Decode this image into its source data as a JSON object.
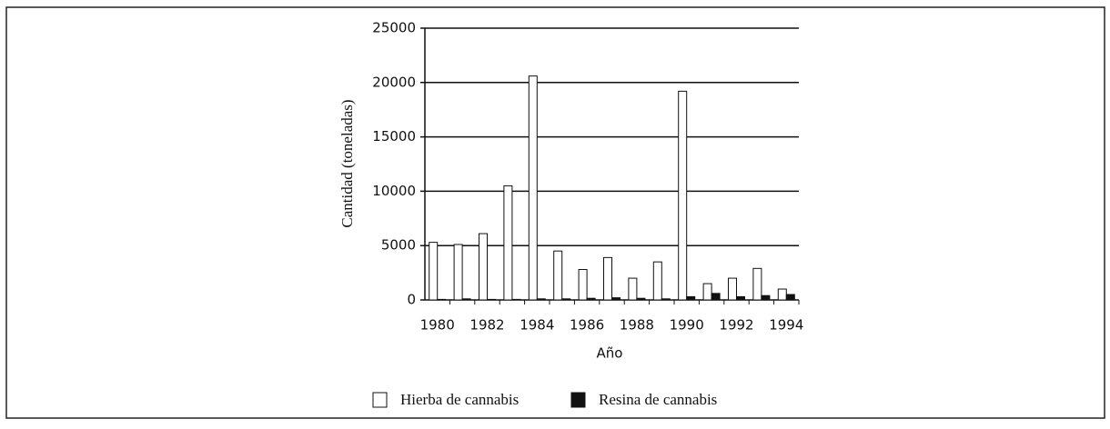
{
  "chart_data": {
    "type": "bar",
    "x_label": "Año",
    "y_label": "Cantidad (toneladas)",
    "categories": [
      "1980",
      null,
      "1982",
      null,
      "1984",
      null,
      "1986",
      null,
      "1988",
      null,
      "1990",
      null,
      "1992",
      null,
      "1994"
    ],
    "series": [
      {
        "name": "Hierba de cannabis",
        "color": "#ffffff",
        "values": [
          5300,
          5100,
          6100,
          10500,
          20600,
          4500,
          2800,
          3900,
          2000,
          3500,
          19200,
          1500,
          2000,
          2900,
          1000
        ]
      },
      {
        "name": "Resina de cannabis",
        "color": "#111111",
        "values": [
          50,
          100,
          50,
          50,
          100,
          100,
          150,
          200,
          150,
          100,
          300,
          600,
          300,
          400,
          500
        ]
      }
    ],
    "ylim": [
      0,
      25000
    ],
    "yticks": [
      0,
      5000,
      10000,
      15000,
      20000,
      25000
    ],
    "grid": true,
    "legend": "bottom"
  }
}
